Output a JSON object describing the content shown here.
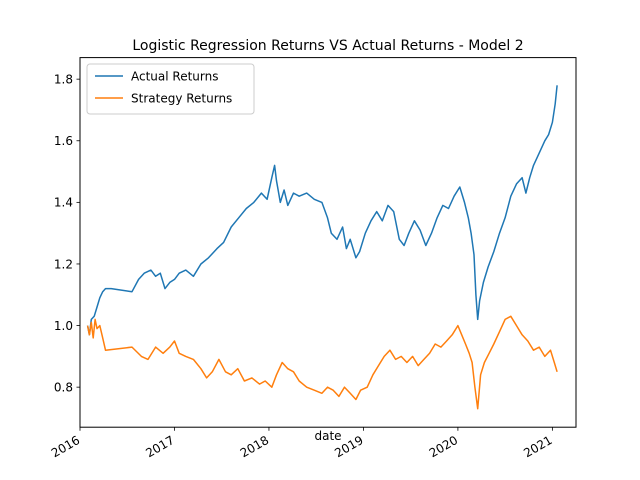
{
  "chart_data": {
    "type": "line",
    "title": "Logistic Regression Returns VS Actual Returns - Model 2",
    "xlabel": "date",
    "ylabel": "",
    "xlim": [
      2016.0,
      2021.25
    ],
    "ylim": [
      0.67,
      1.87
    ],
    "x_ticks": [
      {
        "value": 2016,
        "label": "2016"
      },
      {
        "value": 2017,
        "label": "2017"
      },
      {
        "value": 2018,
        "label": "2018"
      },
      {
        "value": 2019,
        "label": "2019"
      },
      {
        "value": 2020,
        "label": "2020"
      },
      {
        "value": 2021,
        "label": "2021"
      }
    ],
    "y_ticks": [
      {
        "value": 0.8,
        "label": "0.8"
      },
      {
        "value": 1.0,
        "label": "1.0"
      },
      {
        "value": 1.2,
        "label": "1.2"
      },
      {
        "value": 1.4,
        "label": "1.4"
      },
      {
        "value": 1.6,
        "label": "1.6"
      },
      {
        "value": 1.8,
        "label": "1.8"
      }
    ],
    "legend_position": "top-left",
    "series": [
      {
        "name": "Actual Returns",
        "color": "#1f77b4",
        "points": [
          [
            2016.08,
            1.0
          ],
          [
            2016.1,
            0.97
          ],
          [
            2016.12,
            1.02
          ],
          [
            2016.15,
            1.03
          ],
          [
            2016.18,
            1.06
          ],
          [
            2016.21,
            1.09
          ],
          [
            2016.24,
            1.11
          ],
          [
            2016.27,
            1.12
          ],
          [
            2016.33,
            1.12
          ],
          [
            2016.55,
            1.11
          ],
          [
            2016.62,
            1.15
          ],
          [
            2016.68,
            1.17
          ],
          [
            2016.75,
            1.18
          ],
          [
            2016.8,
            1.16
          ],
          [
            2016.85,
            1.17
          ],
          [
            2016.9,
            1.12
          ],
          [
            2016.95,
            1.14
          ],
          [
            2017.0,
            1.15
          ],
          [
            2017.05,
            1.17
          ],
          [
            2017.12,
            1.18
          ],
          [
            2017.2,
            1.16
          ],
          [
            2017.28,
            1.2
          ],
          [
            2017.36,
            1.22
          ],
          [
            2017.45,
            1.25
          ],
          [
            2017.52,
            1.27
          ],
          [
            2017.6,
            1.32
          ],
          [
            2017.68,
            1.35
          ],
          [
            2017.76,
            1.38
          ],
          [
            2017.84,
            1.4
          ],
          [
            2017.92,
            1.43
          ],
          [
            2017.98,
            1.41
          ],
          [
            2018.03,
            1.48
          ],
          [
            2018.06,
            1.52
          ],
          [
            2018.08,
            1.47
          ],
          [
            2018.12,
            1.4
          ],
          [
            2018.16,
            1.44
          ],
          [
            2018.2,
            1.39
          ],
          [
            2018.26,
            1.43
          ],
          [
            2018.32,
            1.42
          ],
          [
            2018.4,
            1.43
          ],
          [
            2018.48,
            1.41
          ],
          [
            2018.56,
            1.4
          ],
          [
            2018.62,
            1.35
          ],
          [
            2018.66,
            1.3
          ],
          [
            2018.72,
            1.28
          ],
          [
            2018.78,
            1.32
          ],
          [
            2018.82,
            1.25
          ],
          [
            2018.86,
            1.28
          ],
          [
            2018.92,
            1.22
          ],
          [
            2018.96,
            1.24
          ],
          [
            2019.02,
            1.3
          ],
          [
            2019.08,
            1.34
          ],
          [
            2019.14,
            1.37
          ],
          [
            2019.2,
            1.34
          ],
          [
            2019.26,
            1.39
          ],
          [
            2019.32,
            1.37
          ],
          [
            2019.38,
            1.28
          ],
          [
            2019.43,
            1.26
          ],
          [
            2019.48,
            1.3
          ],
          [
            2019.54,
            1.34
          ],
          [
            2019.6,
            1.31
          ],
          [
            2019.66,
            1.26
          ],
          [
            2019.72,
            1.3
          ],
          [
            2019.78,
            1.35
          ],
          [
            2019.84,
            1.39
          ],
          [
            2019.9,
            1.38
          ],
          [
            2019.96,
            1.42
          ],
          [
            2020.02,
            1.45
          ],
          [
            2020.07,
            1.4
          ],
          [
            2020.11,
            1.35
          ],
          [
            2020.14,
            1.3
          ],
          [
            2020.17,
            1.23
          ],
          [
            2020.19,
            1.1
          ],
          [
            2020.21,
            1.02
          ],
          [
            2020.23,
            1.08
          ],
          [
            2020.27,
            1.14
          ],
          [
            2020.32,
            1.19
          ],
          [
            2020.38,
            1.24
          ],
          [
            2020.44,
            1.3
          ],
          [
            2020.5,
            1.35
          ],
          [
            2020.56,
            1.42
          ],
          [
            2020.62,
            1.46
          ],
          [
            2020.68,
            1.48
          ],
          [
            2020.72,
            1.43
          ],
          [
            2020.76,
            1.48
          ],
          [
            2020.8,
            1.52
          ],
          [
            2020.86,
            1.56
          ],
          [
            2020.92,
            1.6
          ],
          [
            2020.96,
            1.62
          ],
          [
            2021.0,
            1.66
          ],
          [
            2021.03,
            1.72
          ],
          [
            2021.05,
            1.78
          ]
        ]
      },
      {
        "name": "Strategy Returns",
        "color": "#ff7f0e",
        "points": [
          [
            2016.08,
            1.0
          ],
          [
            2016.1,
            0.97
          ],
          [
            2016.12,
            1.01
          ],
          [
            2016.14,
            0.96
          ],
          [
            2016.16,
            1.02
          ],
          [
            2016.18,
            0.99
          ],
          [
            2016.21,
            1.0
          ],
          [
            2016.24,
            0.96
          ],
          [
            2016.27,
            0.92
          ],
          [
            2016.55,
            0.93
          ],
          [
            2016.65,
            0.9
          ],
          [
            2016.72,
            0.89
          ],
          [
            2016.8,
            0.93
          ],
          [
            2016.88,
            0.91
          ],
          [
            2016.95,
            0.93
          ],
          [
            2017.0,
            0.95
          ],
          [
            2017.05,
            0.91
          ],
          [
            2017.12,
            0.9
          ],
          [
            2017.2,
            0.89
          ],
          [
            2017.28,
            0.86
          ],
          [
            2017.34,
            0.83
          ],
          [
            2017.4,
            0.85
          ],
          [
            2017.47,
            0.89
          ],
          [
            2017.54,
            0.85
          ],
          [
            2017.6,
            0.84
          ],
          [
            2017.67,
            0.86
          ],
          [
            2017.74,
            0.82
          ],
          [
            2017.82,
            0.83
          ],
          [
            2017.9,
            0.81
          ],
          [
            2017.96,
            0.82
          ],
          [
            2018.03,
            0.8
          ],
          [
            2018.08,
            0.84
          ],
          [
            2018.14,
            0.88
          ],
          [
            2018.2,
            0.86
          ],
          [
            2018.26,
            0.85
          ],
          [
            2018.32,
            0.82
          ],
          [
            2018.4,
            0.8
          ],
          [
            2018.48,
            0.79
          ],
          [
            2018.56,
            0.78
          ],
          [
            2018.62,
            0.8
          ],
          [
            2018.68,
            0.79
          ],
          [
            2018.74,
            0.77
          ],
          [
            2018.8,
            0.8
          ],
          [
            2018.86,
            0.78
          ],
          [
            2018.92,
            0.76
          ],
          [
            2018.97,
            0.79
          ],
          [
            2019.04,
            0.8
          ],
          [
            2019.1,
            0.84
          ],
          [
            2019.16,
            0.87
          ],
          [
            2019.22,
            0.9
          ],
          [
            2019.28,
            0.92
          ],
          [
            2019.34,
            0.89
          ],
          [
            2019.4,
            0.9
          ],
          [
            2019.46,
            0.88
          ],
          [
            2019.52,
            0.9
          ],
          [
            2019.58,
            0.87
          ],
          [
            2019.64,
            0.89
          ],
          [
            2019.7,
            0.91
          ],
          [
            2019.76,
            0.94
          ],
          [
            2019.82,
            0.93
          ],
          [
            2019.88,
            0.95
          ],
          [
            2019.94,
            0.97
          ],
          [
            2020.0,
            1.0
          ],
          [
            2020.04,
            0.97
          ],
          [
            2020.08,
            0.94
          ],
          [
            2020.12,
            0.91
          ],
          [
            2020.15,
            0.88
          ],
          [
            2020.18,
            0.8
          ],
          [
            2020.21,
            0.73
          ],
          [
            2020.24,
            0.84
          ],
          [
            2020.28,
            0.88
          ],
          [
            2020.33,
            0.91
          ],
          [
            2020.38,
            0.94
          ],
          [
            2020.44,
            0.98
          ],
          [
            2020.5,
            1.02
          ],
          [
            2020.56,
            1.03
          ],
          [
            2020.62,
            1.0
          ],
          [
            2020.68,
            0.97
          ],
          [
            2020.74,
            0.95
          ],
          [
            2020.8,
            0.92
          ],
          [
            2020.86,
            0.93
          ],
          [
            2020.92,
            0.9
          ],
          [
            2020.98,
            0.92
          ],
          [
            2021.02,
            0.88
          ],
          [
            2021.05,
            0.85
          ]
        ]
      }
    ]
  }
}
